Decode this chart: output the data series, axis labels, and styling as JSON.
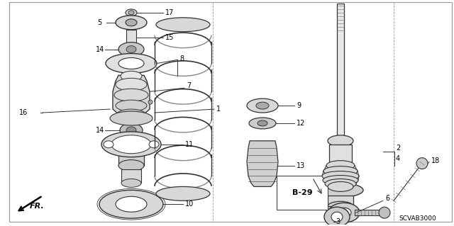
{
  "bg_color": "#ffffff",
  "line_color": "#333333",
  "diagram_code": "SCVAB3000",
  "fig_w": 6.4,
  "fig_h": 3.19,
  "dpi": 100
}
